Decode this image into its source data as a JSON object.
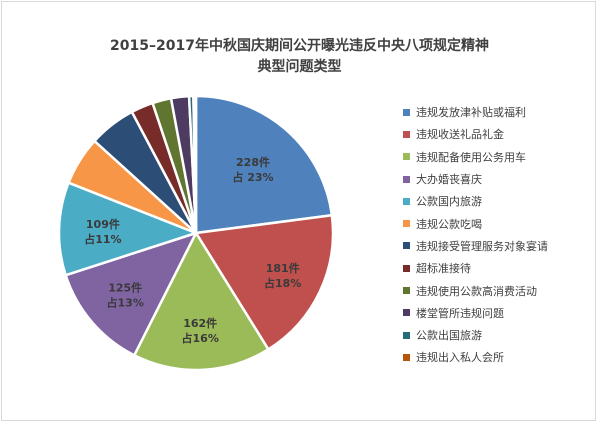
{
  "chart_data": {
    "type": "pie",
    "title_lines": [
      "2015–2017年中秋国庆期间公开曝光违反中央八项规定精神",
      "典型问题类型"
    ],
    "categories": [
      "违规发放津补贴或福利",
      "违规收送礼品礼金",
      "违规配备使用公务用车",
      "大办婚丧喜庆",
      "公款国内旅游",
      "违规公款吃喝",
      "违规接受管理服务对象宴请",
      "超标准接待",
      "违规使用公款高消费活动",
      "楼堂管所违规问题",
      "公款出国旅游",
      "违规出入私人会所"
    ],
    "values": [
      228,
      181,
      162,
      125,
      109,
      57,
      55,
      26,
      22,
      21,
      5,
      3
    ],
    "colors": [
      "#4f81bd",
      "#c0504d",
      "#9bbb59",
      "#8064a2",
      "#4bacc6",
      "#f79646",
      "#2c4d75",
      "#772c2a",
      "#5f7530",
      "#4d3b62",
      "#276a7c",
      "#b65708"
    ],
    "data_labels": [
      {
        "count": "228件",
        "share": "占 23%"
      },
      {
        "count": "181件",
        "share": "占18%"
      },
      {
        "count": "162件",
        "share": "占16%"
      },
      {
        "count": "125件",
        "share": "占13%"
      },
      {
        "count": "109件",
        "share": "占11%"
      }
    ],
    "legend_position": "right"
  }
}
